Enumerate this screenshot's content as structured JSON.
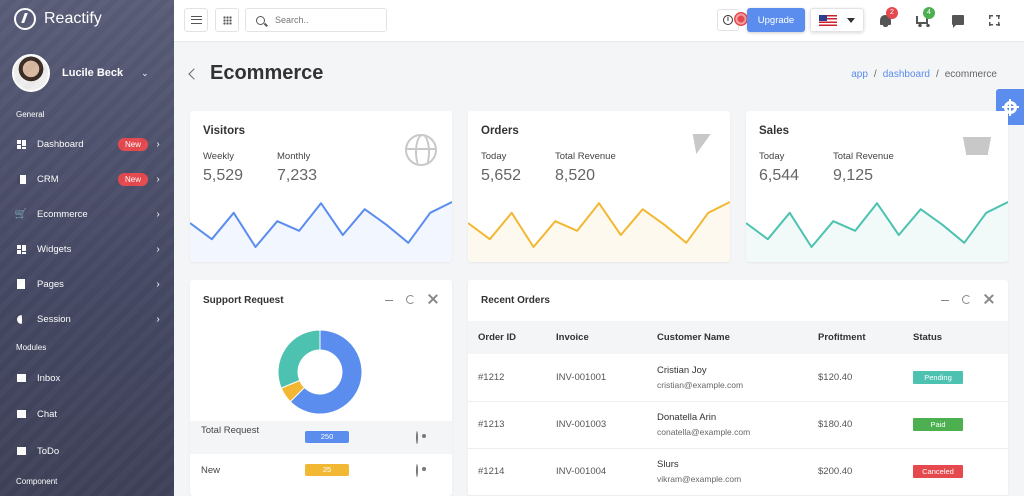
{
  "app": {
    "name": "Reactify"
  },
  "user": {
    "name": "Lucile Beck"
  },
  "sidebar": {
    "sections": [
      "General",
      "Modules",
      "Component"
    ],
    "items": [
      {
        "label": "Dashboard",
        "icon": "dashboard-icon",
        "badge": "New"
      },
      {
        "label": "CRM",
        "icon": "crm-icon",
        "badge": "New"
      },
      {
        "label": "Ecommerce",
        "icon": "cart-icon"
      },
      {
        "label": "Widgets",
        "icon": "widgets-icon"
      },
      {
        "label": "Pages",
        "icon": "pages-icon"
      },
      {
        "label": "Session",
        "icon": "session-icon"
      },
      {
        "label": "Inbox",
        "icon": "inbox-icon"
      },
      {
        "label": "Chat",
        "icon": "chat-icon"
      },
      {
        "label": "ToDo",
        "icon": "todo-icon"
      }
    ]
  },
  "header": {
    "search_placeholder": "Search..",
    "upgrade_label": "Upgrade",
    "notifications_count": "2",
    "cart_count": "4",
    "colors": {
      "accent": "#5b8def",
      "danger": "#e5484d",
      "success": "#4caf50"
    }
  },
  "page": {
    "title": "Ecommerce",
    "breadcrumb": [
      "app",
      "dashboard",
      "ecommerce"
    ]
  },
  "stats": [
    {
      "title": "Visitors",
      "label1": "Weekly",
      "value1": "5,529",
      "label2": "Monthly",
      "value2": "7,233",
      "icon": "globe-icon",
      "color": "#5b8def",
      "trend": [
        0.55,
        0.28,
        0.72,
        0.15,
        0.58,
        0.42,
        0.88,
        0.35,
        0.78,
        0.52,
        0.22,
        0.72,
        0.9
      ]
    },
    {
      "title": "Orders",
      "label1": "Today",
      "value1": "5,652",
      "label2": "Total Revenue",
      "value2": "8,520",
      "icon": "bolt-icon",
      "color": "#f2b834",
      "trend": [
        0.55,
        0.28,
        0.72,
        0.15,
        0.58,
        0.42,
        0.88,
        0.35,
        0.78,
        0.52,
        0.22,
        0.72,
        0.9
      ]
    },
    {
      "title": "Sales",
      "label1": "Today",
      "value1": "6,544",
      "label2": "Total Revenue",
      "value2": "9,125",
      "icon": "shopping-cart-icon",
      "color": "#4dc2b0",
      "trend": [
        0.55,
        0.28,
        0.72,
        0.15,
        0.58,
        0.42,
        0.88,
        0.35,
        0.78,
        0.52,
        0.22,
        0.72,
        0.9
      ]
    }
  ],
  "support": {
    "title": "Support Request",
    "donut": [
      {
        "value": 250,
        "color": "#5b8def"
      },
      {
        "value": 25,
        "color": "#f2b834"
      },
      {
        "value": 125,
        "color": "#4dc2b0"
      }
    ],
    "rows": [
      {
        "label": "Total Request",
        "value": "250",
        "color": "#5b8def"
      },
      {
        "label": "New",
        "value": "25",
        "color": "#f2b834"
      }
    ]
  },
  "orders": {
    "title": "Recent Orders",
    "columns": [
      "Order ID",
      "Invoice",
      "Customer Name",
      "Profitment",
      "Status"
    ],
    "rows": [
      {
        "id": "#1212",
        "invoice": "INV-001001",
        "name": "Cristian Joy",
        "email": "cristian@example.com",
        "amount": "$120.40",
        "status": "Pending",
        "status_color": "#4dc2b0"
      },
      {
        "id": "#1213",
        "invoice": "INV-001003",
        "name": "Donatella Arin",
        "email": "conatella@example.com",
        "amount": "$180.40",
        "status": "Paid",
        "status_color": "#4caf50"
      },
      {
        "id": "#1214",
        "invoice": "INV-001004",
        "name": "Slurs",
        "email": "vikram@example.com",
        "amount": "$200.40",
        "status": "Canceled",
        "status_color": "#e5484d"
      }
    ]
  }
}
